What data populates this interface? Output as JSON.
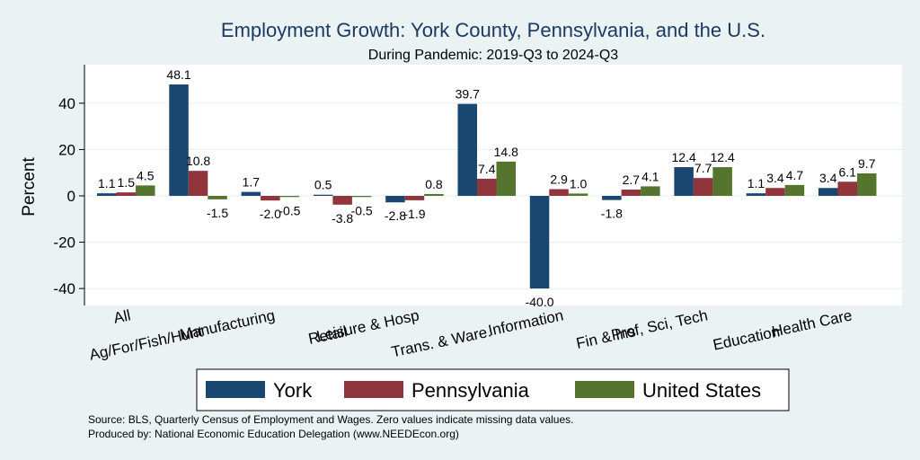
{
  "chart_data": {
    "type": "bar",
    "title": "Employment Growth: York County, Pennsylvania, and the U.S.",
    "subtitle": "During Pandemic: 2019-Q3 to 2024-Q3",
    "ylabel": "Percent",
    "xlabel": "",
    "ylim": [
      -47,
      55
    ],
    "yticks": [
      -40,
      -20,
      0,
      20,
      40
    ],
    "ytick_labels": [
      "-40",
      "-20",
      "0",
      "20",
      "40"
    ],
    "grid": true,
    "categories": [
      "All",
      "Ag/For/Fish/Hunt",
      "Manufacturing",
      "Retail",
      "Leisure & Hosp",
      "Trans. & Ware.",
      "Information",
      "Fin & Ins",
      "Prof, Sci, Tech",
      "Education",
      "Health Care"
    ],
    "series": [
      {
        "name": "York",
        "color": "#1a476f",
        "values": [
          1.1,
          48.1,
          1.7,
          0.5,
          -2.8,
          39.7,
          -40.0,
          -1.8,
          12.4,
          1.1,
          3.4
        ],
        "labels": [
          "1.1",
          "48.1",
          "1.7",
          "0.5",
          "-2.8",
          "39.7",
          "-40.0",
          "-1.8",
          "12.4",
          "1.1",
          "3.4"
        ]
      },
      {
        "name": "Pennsylvania",
        "color": "#90353b",
        "values": [
          1.5,
          10.8,
          -2.0,
          -3.8,
          -1.9,
          7.4,
          2.9,
          2.7,
          7.7,
          3.4,
          6.1
        ],
        "labels": [
          "1.5",
          "10.8",
          "-2.0",
          "-3.8",
          "-1.9",
          "7.4",
          "2.9",
          "2.7",
          "7.7",
          "3.4",
          "6.1"
        ]
      },
      {
        "name": "United States",
        "color": "#55752f",
        "values": [
          4.5,
          -1.5,
          -0.5,
          -0.5,
          0.8,
          14.8,
          1.0,
          4.1,
          12.4,
          4.7,
          9.7
        ],
        "labels": [
          "4.5",
          "-1.5",
          "-0.5",
          "-0.5",
          "0.8",
          "14.8",
          "1.0",
          "4.1",
          "12.4",
          "4.7",
          "9.7"
        ]
      }
    ],
    "legend_position": "bottom",
    "notes": [
      "Source: BLS, Quarterly Census of Employment and Wages. Zero values indicate missing data values.",
      "Produced by: National Economic Education Delegation (www.NEEDEcon.org)"
    ]
  }
}
